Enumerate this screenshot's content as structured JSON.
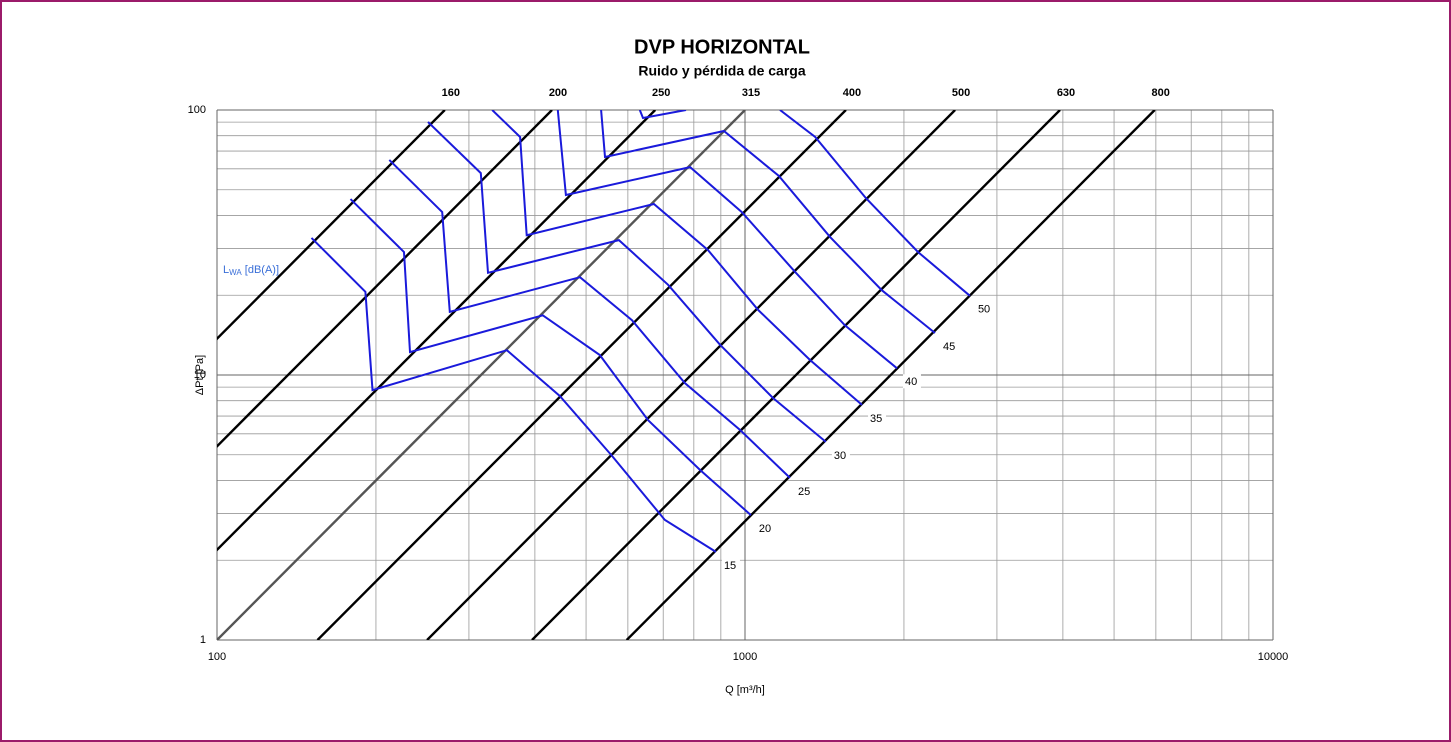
{
  "chart_data": {
    "type": "line",
    "title": "DVP HORIZONTAL",
    "subtitle": "Ruido y pérdida de carga",
    "xlabel": "Q [m³/h]",
    "ylabel": "ΔPt [Pa]",
    "annotation": {
      "main": "L",
      "sub": "WA",
      "tail": " [dB(A)]"
    },
    "log_x": true,
    "log_y": true,
    "grid": true,
    "xlim": [
      100,
      10000
    ],
    "xticks": [
      100,
      1000,
      10000
    ],
    "ylim": [
      1,
      100
    ],
    "yticks": [
      1,
      10,
      100
    ],
    "minor_xticks": [
      200,
      300,
      400,
      500,
      600,
      700,
      800,
      900,
      2000,
      3000,
      4000,
      5000,
      6000,
      7000,
      8000,
      9000
    ],
    "minor_yticks": [
      2,
      3,
      4,
      5,
      6,
      7,
      8,
      9,
      20,
      30,
      40,
      50,
      60,
      70,
      80,
      90
    ],
    "ducts": [
      {
        "name": "160",
        "color": "#000000",
        "x": [
          27,
          270
        ],
        "values": [
          1,
          100
        ]
      },
      {
        "name": "200",
        "color": "#000000",
        "x": [
          43.1,
          431
        ],
        "values": [
          1,
          100
        ]
      },
      {
        "name": "250",
        "color": "#000000",
        "x": [
          67.6,
          676
        ],
        "values": [
          1,
          100
        ]
      },
      {
        "name": "315",
        "color": "#555555",
        "x": [
          100,
          1000
        ],
        "values": [
          1,
          100
        ]
      },
      {
        "name": "400",
        "color": "#000000",
        "x": [
          155,
          1553
        ],
        "values": [
          1,
          100
        ]
      },
      {
        "name": "500",
        "color": "#000000",
        "x": [
          250,
          2500
        ],
        "values": [
          1,
          100
        ]
      },
      {
        "name": "630",
        "color": "#000000",
        "x": [
          395,
          3950
        ],
        "values": [
          1,
          100
        ]
      },
      {
        "name": "800",
        "color": "#000000",
        "x": [
          597,
          5970
        ],
        "values": [
          1,
          100
        ]
      }
    ],
    "series": [
      {
        "name": "15",
        "color": "#1a1adb",
        "x": [
          151,
          191,
          197,
          354,
          446,
          560,
          705,
          881
        ],
        "values": [
          32.9,
          20.6,
          8.77,
          12.4,
          8.33,
          4.95,
          2.84,
          2.15
        ]
      },
      {
        "name": "20",
        "color": "#1a1adb",
        "x": [
          179,
          226,
          232,
          414,
          531,
          655,
          822,
          1026
        ],
        "values": [
          46.1,
          29.1,
          12.2,
          16.8,
          11.9,
          6.76,
          4.38,
          2.96
        ]
      },
      {
        "name": "25",
        "color": "#1a1adb",
        "x": [
          212,
          267,
          276,
          487,
          611,
          769,
          979,
          1217
        ],
        "values": [
          64.8,
          41.2,
          17.3,
          23.4,
          16.1,
          9.33,
          6.2,
          4.09
        ]
      },
      {
        "name": "30",
        "color": "#1a1adb",
        "x": [
          251,
          316,
          326,
          577,
          715,
          897,
          1130,
          1423
        ],
        "values": [
          90.1,
          57.8,
          24.3,
          32.3,
          21.9,
          13.0,
          8.19,
          5.59
        ]
      },
      {
        "name": "35",
        "color": "#1a1adb",
        "x": [
          332,
          375,
          386,
          672,
          851,
          1059,
          1327,
          1666
        ],
        "values": [
          100,
          79.1,
          33.7,
          44.2,
          29.6,
          17.6,
          11.4,
          7.71
        ]
      },
      {
        "name": "40",
        "color": "#1a1adb",
        "x": [
          442,
          458,
          787,
          986,
          1244,
          1546,
          1940
        ],
        "values": [
          100,
          47.8,
          60.9,
          41.2,
          24.5,
          15.4,
          10.6
        ]
      },
      {
        "name": "45",
        "color": "#1a1adb",
        "x": [
          534,
          543,
          912,
          1159,
          1449,
          1816,
          2290
        ],
        "values": [
          100,
          66.5,
          83.3,
          56.4,
          33.2,
          20.9,
          14.4
        ]
      },
      {
        "name": "50",
        "color": "#1a1adb",
        "x": [
          632,
          641,
          773,
          null,
          1165,
          1358,
          1694,
          2127,
          2667
        ],
        "values": [
          100,
          93.3,
          100,
          null,
          100,
          79.1,
          46.5,
          29.1,
          19.9
        ]
      }
    ],
    "label_color": "#3a6fd8"
  }
}
